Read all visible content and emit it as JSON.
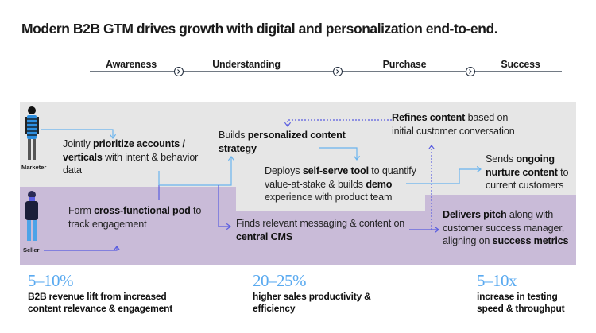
{
  "title": "Modern B2B GTM drives growth with digital and personalization end-to-end.",
  "stages": [
    "Awareness",
    "Understanding",
    "Purchase",
    "Success"
  ],
  "roles": {
    "marketer": "Marketer",
    "seller": "Seller"
  },
  "steps": {
    "prioritize": {
      "pre": "Jointly ",
      "bold": "prioritize accounts / verticals",
      "post": " with intent & behavior data"
    },
    "pod": {
      "pre": "Form ",
      "bold": "cross-functional pod",
      "post": " to track engagement"
    },
    "builds": {
      "pre": "Builds ",
      "bold": "personalized content strategy",
      "post": ""
    },
    "refines": {
      "pre": "",
      "bold": "Refines content",
      "post": " based on initial customer conversation"
    },
    "deploys": {
      "pre": "Deploys ",
      "bold1": "self-serve tool",
      "mid": " to quantify value-at-stake & builds ",
      "bold2": "demo",
      "post": " experience with product team"
    },
    "finds": {
      "pre": "Finds relevant messaging & content on ",
      "bold": "central CMS",
      "post": ""
    },
    "sends": {
      "pre": "Sends ",
      "bold": "ongoing nurture content",
      "post": " to current customers"
    },
    "delivers": {
      "pre": "",
      "bold1": "Delivers pitch",
      "mid": " along with customer success manager, aligning on ",
      "bold2": "success metrics",
      "post": ""
    }
  },
  "stats": [
    {
      "value": "5–10%",
      "desc": "B2B revenue lift from increased content relevance & engagement"
    },
    {
      "value": "20–25%",
      "desc": "higher sales productivity & efficiency"
    },
    {
      "value": "5–10x",
      "desc": "increase in testing speed & throughput"
    }
  ],
  "colors": {
    "marketer_lane": "#e6e6e6",
    "seller_lane": "#c9bbd8",
    "arrow_light": "#6ab4ee",
    "arrow_dark": "#5a5ee0",
    "stat": "#5aaaf0"
  }
}
